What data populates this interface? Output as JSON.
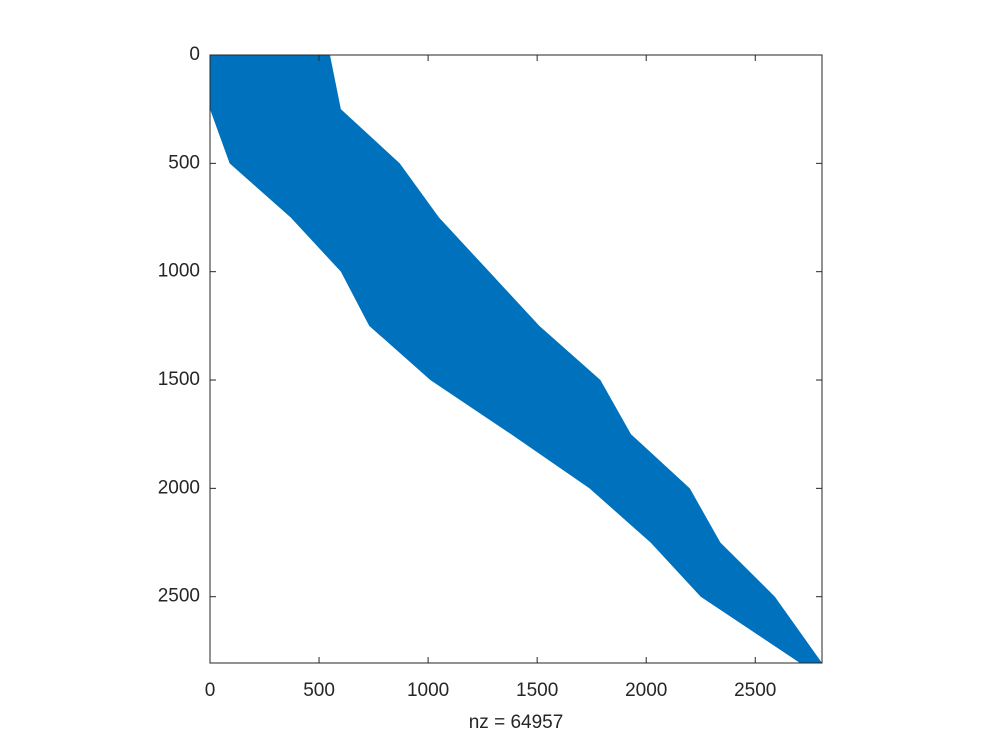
{
  "chart_data": {
    "type": "spy",
    "xlabel": "nz = 64957",
    "rows": [
      0,
      250,
      500,
      750,
      1000,
      1250,
      1500,
      1750,
      2000,
      2250,
      2500,
      2806
    ],
    "col_min": [
      0,
      0,
      90,
      370,
      600,
      730,
      1010,
      1380,
      1740,
      2020,
      2250,
      2705
    ],
    "col_max": [
      550,
      600,
      870,
      1050,
      1280,
      1510,
      1790,
      1930,
      2200,
      2340,
      2590,
      2806
    ],
    "color": "#0072bd",
    "xlim": [
      0,
      2806
    ],
    "ylim": [
      0,
      2806
    ],
    "xticks": [
      0,
      500,
      1000,
      1500,
      2000,
      2500
    ],
    "yticks": [
      0,
      500,
      1000,
      1500,
      2000,
      2500
    ]
  }
}
